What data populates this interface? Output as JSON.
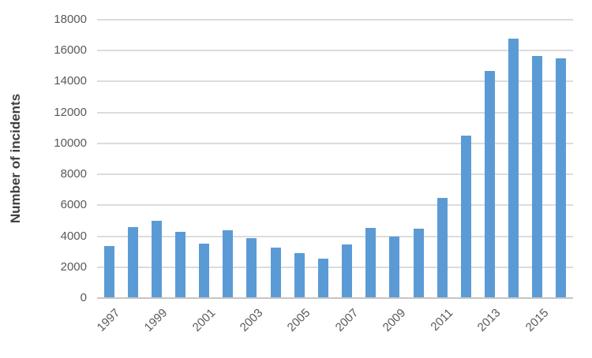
{
  "chart_data": {
    "type": "bar",
    "title": "",
    "xlabel": "",
    "ylabel": "Number of incidents",
    "categories": [
      "1997",
      "1998",
      "1999",
      "2000",
      "2001",
      "2002",
      "2003",
      "2004",
      "2005",
      "2006",
      "2007",
      "2008",
      "2009",
      "2010",
      "2011",
      "2012",
      "2013",
      "2014",
      "2015",
      "2016"
    ],
    "values": [
      3350,
      4600,
      5000,
      4300,
      3500,
      4400,
      3850,
      3250,
      2900,
      2550,
      3450,
      4550,
      4000,
      4500,
      6500,
      10500,
      14700,
      16800,
      15650,
      15500
    ],
    "xtick_labels": [
      "1997",
      "1999",
      "2001",
      "2003",
      "2005",
      "2007",
      "2009",
      "2011",
      "2013",
      "2015"
    ],
    "xtick_every": 2,
    "ytick_labels": [
      "0",
      "2000",
      "4000",
      "6000",
      "8000",
      "10000",
      "12000",
      "14000",
      "16000",
      "18000"
    ],
    "ylim": [
      0,
      18000
    ],
    "ytick_step": 2000,
    "grid": true,
    "legend_position": "none",
    "colors": {
      "bar": "#5B9BD5",
      "gridline": "#DCDCDC",
      "axis_line": "#C6C6C6",
      "tick_text": "#595959",
      "axis_title_text": "#404040",
      "background": "#FFFFFF"
    }
  }
}
